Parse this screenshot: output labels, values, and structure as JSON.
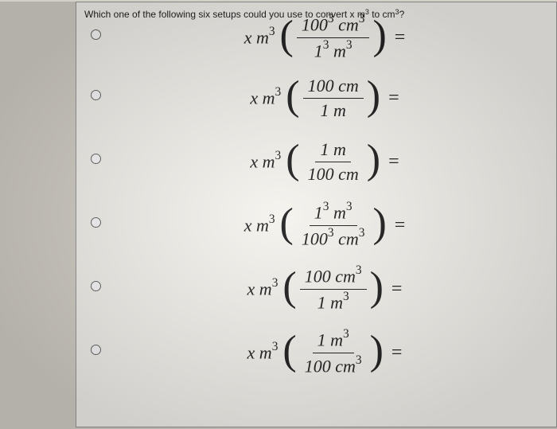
{
  "question": {
    "prefix": "Which one of the following six setups could you use to convert x m",
    "sup1": "3",
    "mid": " to cm",
    "sup2": "3",
    "suffix": "?"
  },
  "colors": {
    "page_bg": "#d4d0c8",
    "panel_bg": "#f5f3ee",
    "border": "#999",
    "text": "#222",
    "radio_border": "#666",
    "radio_bg": "#fafafa"
  },
  "options": [
    {
      "num": "100<sup>3</sup> <span class='unit'>cm</span><sup>3</sup>",
      "den": "1<sup>3</sup> <span class='unit'>m</span><sup>3</sup>"
    },
    {
      "num": "100 <span class='unit'>cm</span>",
      "den": "1 <span class='unit'>m</span>"
    },
    {
      "num": "1 <span class='unit'>m</span>",
      "den": "100 <span class='unit'>cm</span>"
    },
    {
      "num": "1<sup>3</sup> <span class='unit'>m</span><sup>3</sup>",
      "den": "100<sup>3</sup> <span class='unit'>cm</span><sup>3</sup>"
    },
    {
      "num": "100 <span class='unit'>cm</span><sup>3</sup>",
      "den": "1 <span class='unit'>m</span><sup>3</sup>"
    },
    {
      "num": "1 <span class='unit'>m</span><sup>3</sup>",
      "den": "100 <span class='unit'>cm</span><sup>3</sup>"
    }
  ],
  "prefix_xm3": "x m",
  "prefix_sup": "3"
}
